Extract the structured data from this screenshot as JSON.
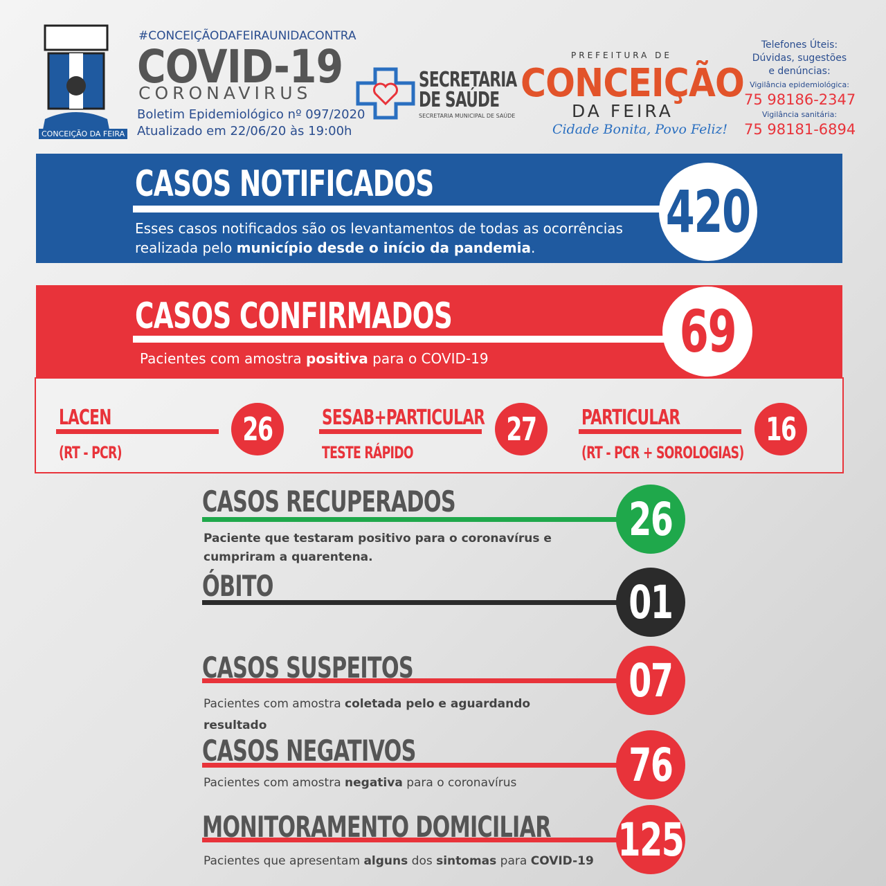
{
  "header": {
    "hashtag": "#CONCEIÇÃODAFEIRAUNIDACONTRA",
    "title": "COVID-19",
    "subtitle": "CORONAVIRUS",
    "bulletin": "Boletim Epidemiológico nº 097/2020",
    "updated": "Atualizado em 22/06/20 às 19:00h",
    "emblem_label": "CONCEIÇÃO DA FEIRA"
  },
  "secretaria": {
    "line1": "SECRETARIA",
    "line2": "DE SAÚDE",
    "line3": "SECRETARIA MUNICIPAL DE SAÚDE"
  },
  "prefeitura": {
    "top": "PREFEITURA DE",
    "name": "CONCEIÇÃO",
    "sub": "DA FEIRA",
    "slogan": "Cidade Bonita, Povo Feliz!"
  },
  "contacts": {
    "title": "Telefones Úteis:",
    "line2": "Dúvidas, sugestões",
    "line3": "e denúncias:",
    "epi_label": "Vigilância epidemiológica:",
    "epi_phone": "75 98186-2347",
    "san_label": "Vigilância sanitária:",
    "san_phone": "75 98181-6894"
  },
  "notificados": {
    "title": "CASOS NOTIFICADOS",
    "value": "420",
    "description": [
      {
        "text": "Esses casos notificados são os levantamentos de todas as ocorrências realizada pelo ",
        "bold": false
      },
      {
        "text": "município desde o início da pandemia",
        "bold": true
      },
      {
        "text": ".",
        "bold": false
      }
    ]
  },
  "confirmados": {
    "title": "CASOS CONFIRMADOS",
    "value": "69",
    "description": [
      {
        "text": "Pacientes com amostra ",
        "bold": false
      },
      {
        "text": "positiva",
        "bold": true
      },
      {
        "text": " para o COVID-19",
        "bold": false
      }
    ],
    "breakdown": [
      {
        "label": "LACEN",
        "sublabel": "(RT - PCR)",
        "value": "26"
      },
      {
        "label": "SESAB+PARTICULAR",
        "sublabel": "TESTE RÁPIDO",
        "value": "27"
      },
      {
        "label": "PARTICULAR",
        "sublabel": "(RT - PCR + SOROLOGIAS)",
        "value": "16"
      }
    ]
  },
  "sections": [
    {
      "title": "CASOS RECUPERADOS",
      "value": "26",
      "color": "#1fa84b",
      "description": [
        {
          "text": "Paciente que testaram positivo para o coronavírus e cumpriram a quarentena.",
          "bold": true
        }
      ]
    },
    {
      "title": "ÓBITO",
      "value": "01",
      "color": "#2b2b2b"
    },
    {
      "title": "CASOS SUSPEITOS",
      "value": "07",
      "color": "#e8333a",
      "description": [
        {
          "text": "Pacientes com amostra ",
          "bold": false
        },
        {
          "text": "coletada pelo e aguardando resultado",
          "bold": true
        }
      ]
    },
    {
      "title": "CASOS NEGATIVOS",
      "value": "76",
      "color": "#e8333a",
      "description": [
        {
          "text": "Pacientes com amostra ",
          "bold": false
        },
        {
          "text": "negativa",
          "bold": true
        },
        {
          "text": " para o coronavírus",
          "bold": false
        }
      ]
    },
    {
      "title": "MONITORAMENTO DOMICILIAR",
      "value": "125",
      "color": "#e8333a",
      "description": [
        {
          "text": "Pacientes que apresentam ",
          "bold": false
        },
        {
          "text": "alguns",
          "bold": true
        },
        {
          "text": " dos ",
          "bold": false
        },
        {
          "text": "sintomas",
          "bold": true
        },
        {
          "text": " para ",
          "bold": false
        },
        {
          "text": "COVID-19",
          "bold": true
        }
      ]
    }
  ]
}
